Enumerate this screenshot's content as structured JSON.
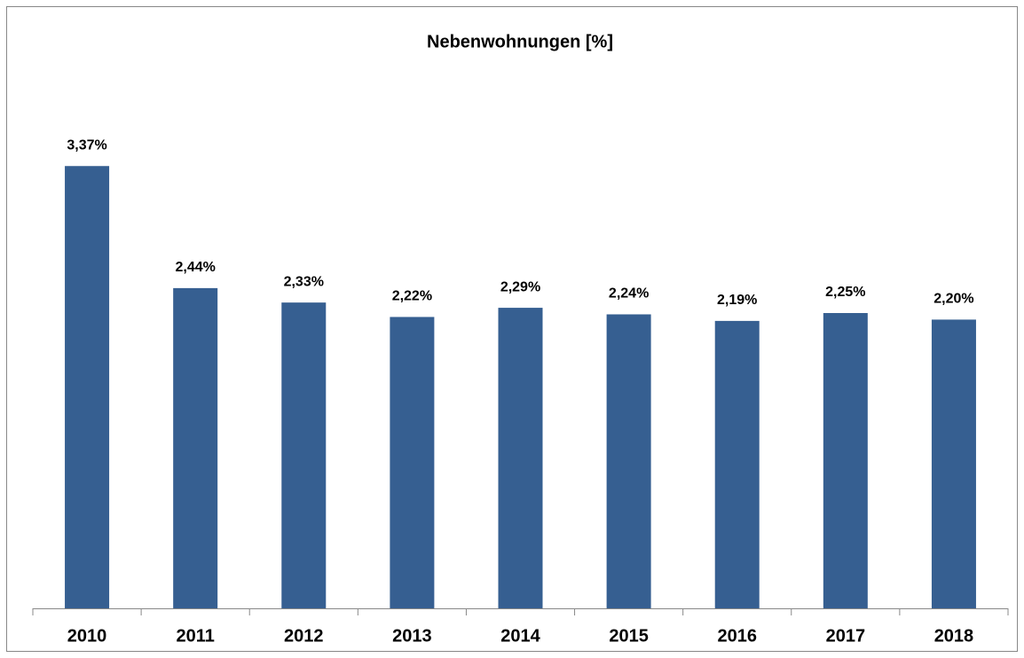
{
  "chart_data": {
    "type": "bar",
    "title": "Nebenwohnungen [%]",
    "categories": [
      "2010",
      "2011",
      "2012",
      "2013",
      "2014",
      "2015",
      "2016",
      "2017",
      "2018"
    ],
    "values": [
      3.37,
      2.44,
      2.33,
      2.22,
      2.29,
      2.24,
      2.19,
      2.25,
      2.2
    ],
    "value_labels": [
      "3,37%",
      "2,44%",
      "2,33%",
      "2,22%",
      "2,29%",
      "2,24%",
      "2,19%",
      "2,25%",
      "2,20%"
    ],
    "color": "#365f91",
    "ylim": [
      0,
      4
    ]
  }
}
